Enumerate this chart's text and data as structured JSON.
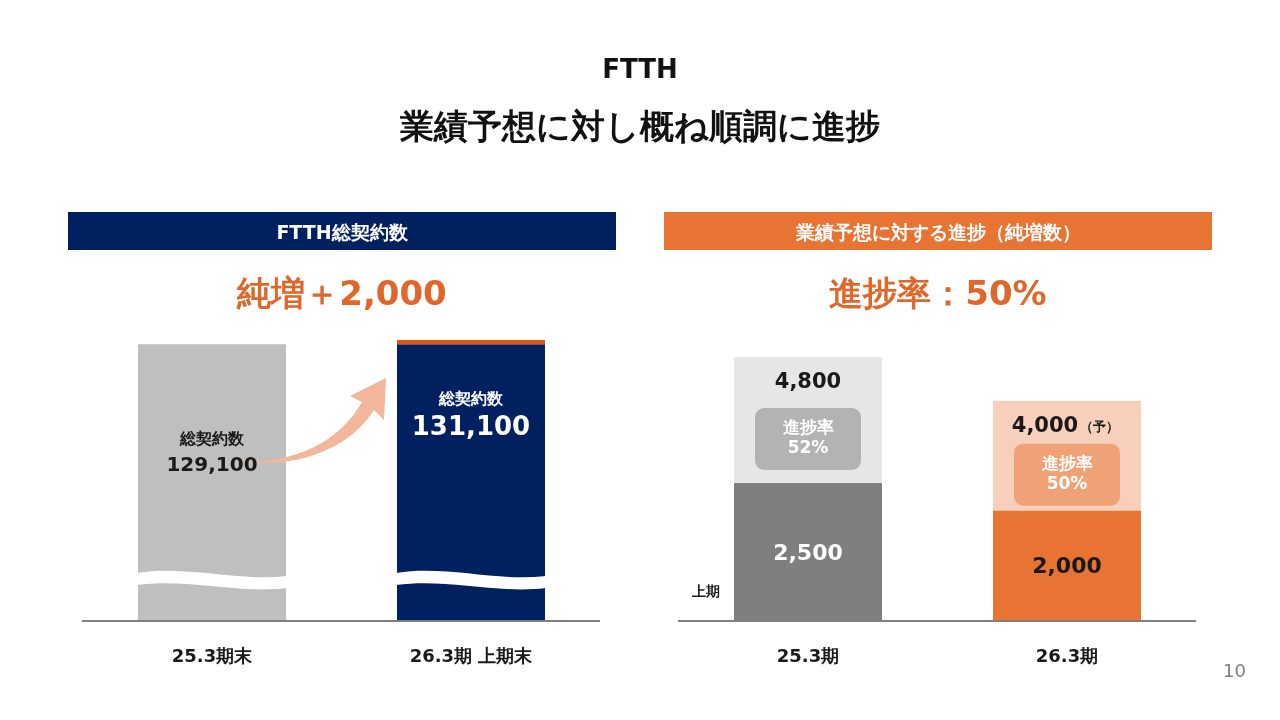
{
  "chart_data": [
    {
      "type": "bar",
      "stacked": true,
      "title": "FTTH総契約数",
      "subtitle": "純増＋2,000",
      "categories": [
        "25.3期末",
        "26.3期 上期末"
      ],
      "series": [
        {
          "name": "総契約数",
          "colors": [
            "#bfbfbf",
            "#002060"
          ],
          "values": [
            129100,
            129100
          ],
          "value_labels": [
            "129,100",
            null
          ]
        },
        {
          "color": "#dc5513",
          "values": [
            null,
            2000
          ]
        }
      ],
      "totals": [
        null,
        "131,100"
      ],
      "annotations": [
        "FTTH",
        "業績予想に対し概ね順調に進捗"
      ]
    },
    {
      "type": "bar",
      "stacked": true,
      "title": "業績予想に対する進捗（純増数）",
      "subtitle": "進捗率：50%",
      "categories": [
        "25.3期",
        "26.3期"
      ],
      "series": [
        {
          "name": "上期",
          "colors": [
            "#7f7f7f",
            "#e87434"
          ],
          "values": [
            2500,
            2000
          ],
          "value_labels": [
            "2,500",
            "2,000"
          ]
        },
        {
          "colors": [
            "#e6e6e6",
            "#f8cfba"
          ],
          "values": [
            2300,
            2000
          ]
        }
      ],
      "totals": [
        "4,800",
        "4,000"
      ],
      "annotations": [
        "進捗率\n52%",
        "進捗率\n50%",
        "（予）",
        "10"
      ]
    }
  ]
}
